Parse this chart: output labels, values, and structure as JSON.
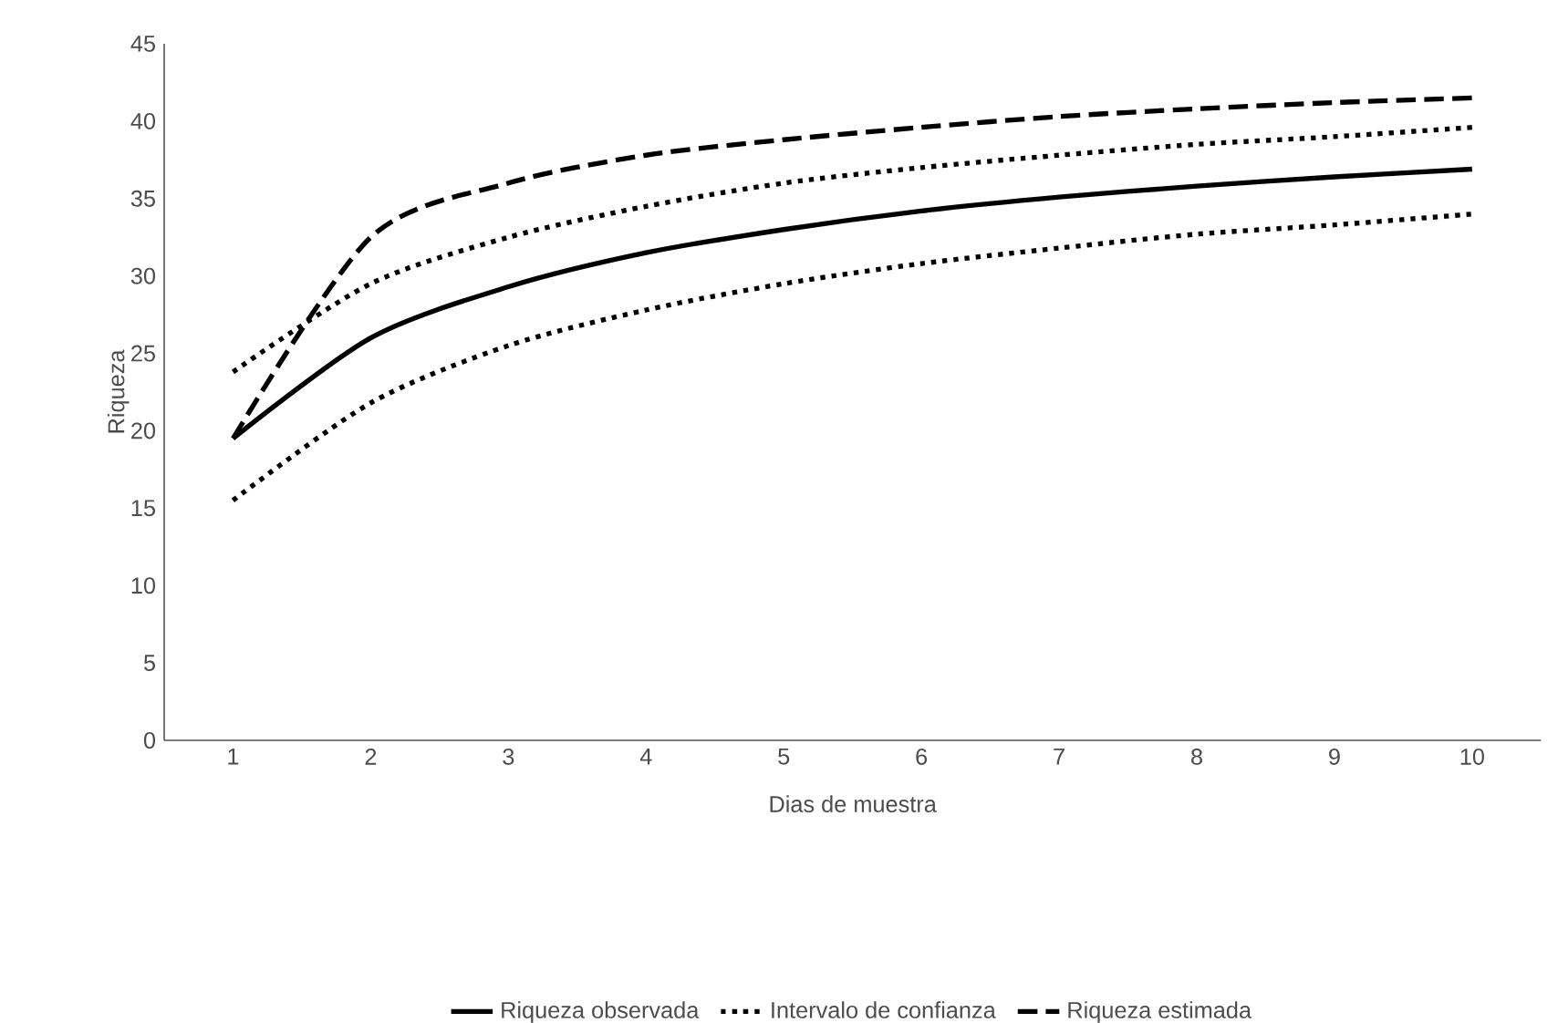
{
  "chart_data": {
    "type": "line",
    "xlabel": "Dias de muestra",
    "ylabel": "Riqueza",
    "x": [
      1,
      2,
      3,
      4,
      5,
      6,
      7,
      8,
      9,
      10
    ],
    "xlim": [
      0.5,
      10.5
    ],
    "xticks": [
      1,
      2,
      3,
      4,
      5,
      6,
      7,
      8,
      9,
      10
    ],
    "ylim": [
      0,
      45
    ],
    "yticks": [
      0,
      5,
      10,
      15,
      20,
      25,
      30,
      35,
      40,
      45
    ],
    "grid": false,
    "legend": "bottom",
    "marker": "none",
    "series": [
      {
        "name": "Riqueza observada",
        "color": "#000000",
        "line_style": "solid",
        "values": [
          19.5,
          26,
          29.3,
          31.5,
          33,
          34.2,
          35.1,
          35.8,
          36.4,
          36.9
        ]
      },
      {
        "name": "Intervalo de confianza",
        "color": "#000000",
        "line_style": "dotted",
        "values": [
          23.8,
          29.5,
          32.5,
          34.5,
          36,
          37,
          37.8,
          38.5,
          39,
          39.6
        ]
      },
      {
        "color": "#000000",
        "line_style": "dotted",
        "values": [
          15.5,
          21.8,
          25.5,
          27.8,
          29.5,
          30.8,
          31.8,
          32.7,
          33.3,
          34
        ]
      },
      {
        "name": "Riqueza estimada",
        "color": "#000000",
        "line_style": "dashed",
        "values": [
          19.5,
          32.5,
          36,
          37.8,
          38.8,
          39.6,
          40.3,
          40.8,
          41.2,
          41.5
        ]
      }
    ]
  }
}
